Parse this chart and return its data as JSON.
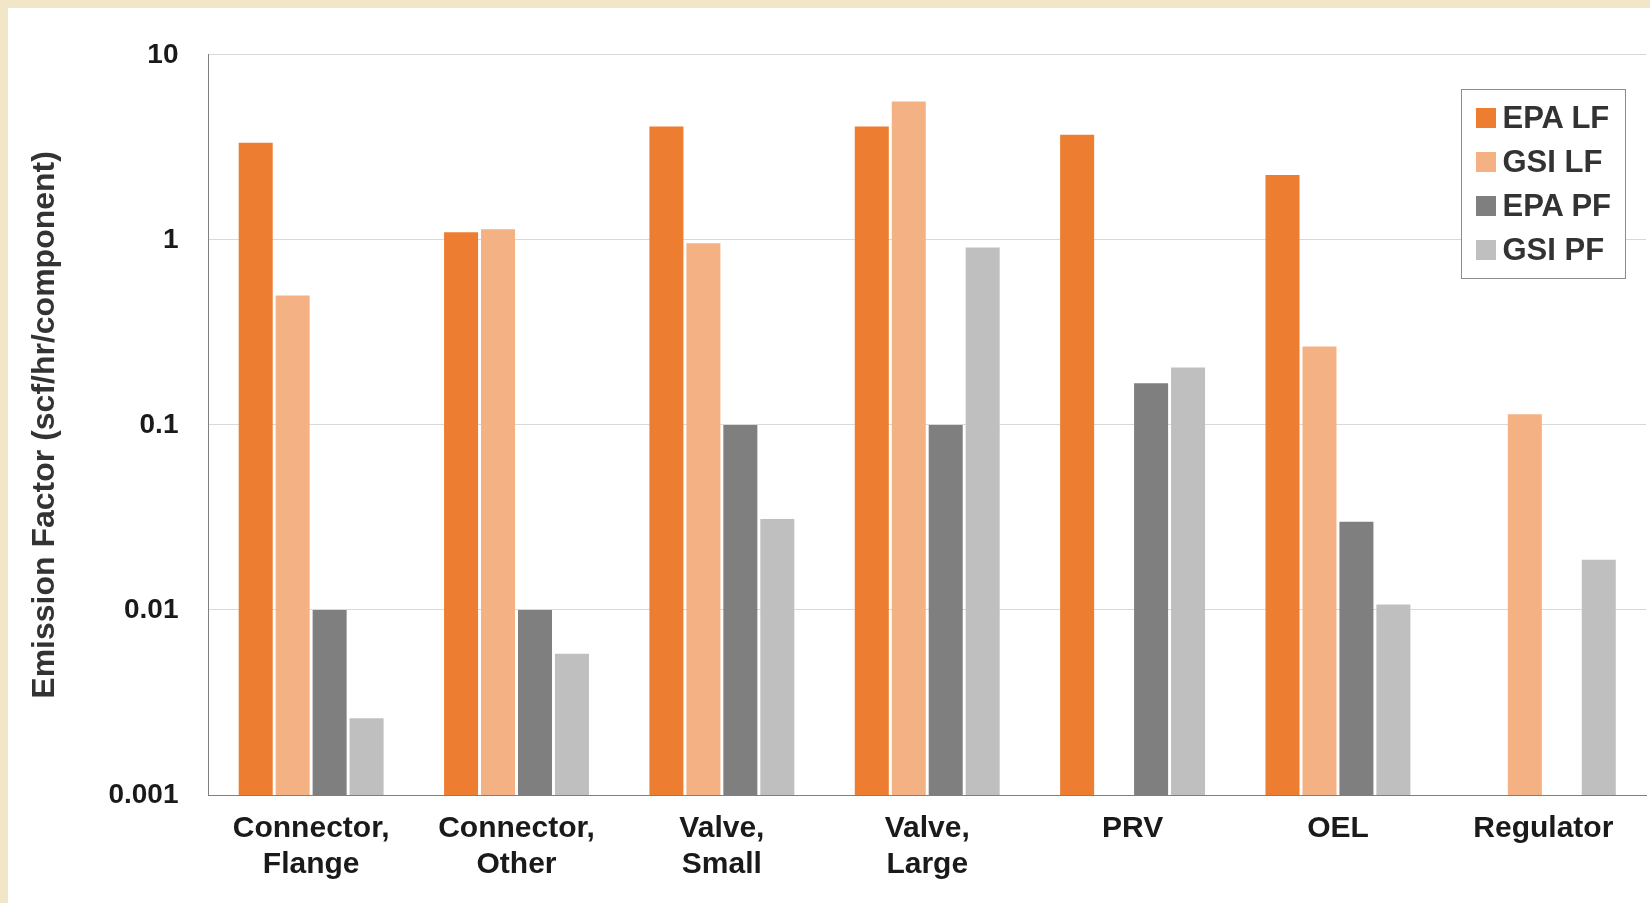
{
  "chart_data": {
    "type": "bar",
    "ylabel": "Emission Factor (scf/hr/component)",
    "categories": [
      "Connector, Flange",
      "Connector, Other",
      "Valve, Small",
      "Valve, Large",
      "PRV",
      "OEL",
      "Regulator"
    ],
    "series": [
      {
        "name": "EPA LF",
        "color": "#ed7d31",
        "values": [
          3.35,
          1.1,
          4.1,
          4.1,
          3.7,
          2.24,
          null
        ]
      },
      {
        "name": "GSI LF",
        "color": "#f4b183",
        "values": [
          0.5,
          1.14,
          0.96,
          5.6,
          null,
          0.265,
          0.114
        ]
      },
      {
        "name": "EPA PF",
        "color": "#7f7f7f",
        "values": [
          0.01,
          0.01,
          0.1,
          0.1,
          0.168,
          0.03,
          null
        ]
      },
      {
        "name": "GSI PF",
        "color": "#bfbfbf",
        "values": [
          0.0026,
          0.0058,
          0.031,
          0.91,
          0.204,
          0.0107,
          0.0187
        ]
      }
    ],
    "log": "y",
    "ylim": [
      0.001,
      10
    ],
    "yticks": [
      0.001,
      0.01,
      0.1,
      1,
      10
    ],
    "grid": "y",
    "legend": "top right"
  }
}
